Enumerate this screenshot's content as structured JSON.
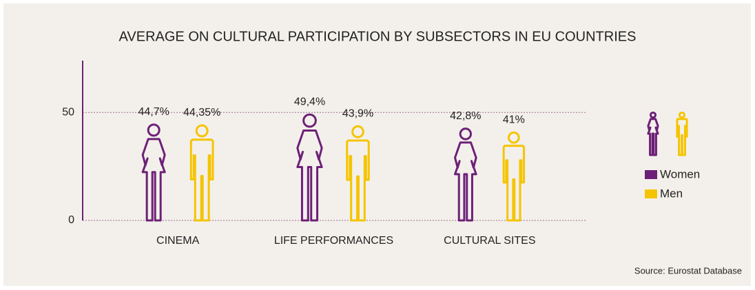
{
  "chart_data": {
    "type": "pictogram",
    "title": "AVERAGE ON CULTURAL PARTICIPATION BY SUBSECTORS IN EU COUNTRIES",
    "categories": [
      "CINEMA",
      "LIFE PERFORMANCES",
      "CULTURAL SITES"
    ],
    "series": [
      {
        "name": "Women",
        "color": "#6d2077",
        "values": [
          44.7,
          49.4,
          42.8
        ],
        "value_labels": [
          "44,7%",
          "49,4%",
          "42,8%"
        ]
      },
      {
        "name": "Men",
        "color": "#f5c400",
        "values": [
          44.35,
          43.9,
          41
        ],
        "value_labels": [
          "44,35%",
          "43,9%",
          "41%"
        ]
      }
    ],
    "ylim": [
      0,
      74
    ],
    "yticks": [
      0,
      50
    ],
    "grid": true,
    "source": "Source: Eurostat Database"
  }
}
